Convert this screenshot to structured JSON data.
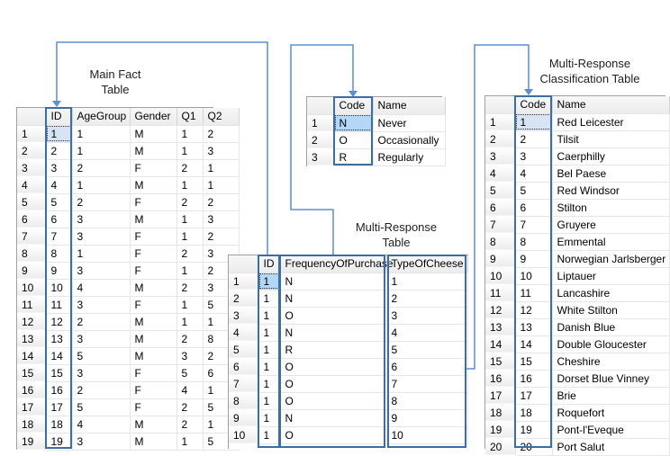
{
  "labels": {
    "main_fact": "Main Fact",
    "main_fact2": "Table",
    "multi_response": "Multi-Response",
    "multi_response2": "Table",
    "classification": "Multi-Response",
    "classification2": "Classification Table"
  },
  "colors": {
    "connector": "#5b8fd0",
    "highlight_border": "#3a6ea5",
    "selected_cell": "#b4d6f7"
  },
  "main_fact_table": {
    "columns": [
      "",
      "ID",
      "AgeGroup",
      "Gender",
      "Q1",
      "Q2"
    ],
    "rows": [
      [
        "1",
        "1",
        "1",
        "M",
        "1",
        "2"
      ],
      [
        "2",
        "2",
        "1",
        "M",
        "1",
        "3"
      ],
      [
        "3",
        "3",
        "2",
        "F",
        "2",
        "1"
      ],
      [
        "4",
        "4",
        "1",
        "M",
        "1",
        "1"
      ],
      [
        "5",
        "5",
        "2",
        "F",
        "2",
        "2"
      ],
      [
        "6",
        "6",
        "3",
        "M",
        "1",
        "3"
      ],
      [
        "7",
        "7",
        "3",
        "F",
        "1",
        "2"
      ],
      [
        "8",
        "8",
        "1",
        "F",
        "2",
        "3"
      ],
      [
        "9",
        "9",
        "3",
        "F",
        "1",
        "2"
      ],
      [
        "10",
        "10",
        "4",
        "M",
        "2",
        "3"
      ],
      [
        "11",
        "11",
        "3",
        "F",
        "1",
        "5"
      ],
      [
        "12",
        "12",
        "2",
        "M",
        "1",
        "1"
      ],
      [
        "13",
        "13",
        "3",
        "M",
        "2",
        "8"
      ],
      [
        "14",
        "14",
        "5",
        "M",
        "3",
        "2"
      ],
      [
        "15",
        "15",
        "3",
        "F",
        "5",
        "6"
      ],
      [
        "16",
        "16",
        "2",
        "F",
        "4",
        "1"
      ],
      [
        "17",
        "17",
        "5",
        "F",
        "2",
        "5"
      ],
      [
        "18",
        "18",
        "4",
        "M",
        "2",
        "1"
      ],
      [
        "19",
        "19",
        "3",
        "M",
        "1",
        "5"
      ]
    ]
  },
  "code_table": {
    "columns": [
      "",
      "Code",
      "Name"
    ],
    "rows": [
      [
        "1",
        "N",
        "Never"
      ],
      [
        "2",
        "O",
        "Occasionally"
      ],
      [
        "3",
        "R",
        "Regularly"
      ]
    ]
  },
  "multi_response_table": {
    "columns": [
      "",
      "ID",
      "FrequencyOfPurchase",
      "TypeOfCheese"
    ],
    "rows": [
      [
        "1",
        "1",
        "N",
        "1"
      ],
      [
        "2",
        "1",
        "N",
        "2"
      ],
      [
        "3",
        "1",
        "O",
        "3"
      ],
      [
        "4",
        "1",
        "N",
        "4"
      ],
      [
        "5",
        "1",
        "R",
        "5"
      ],
      [
        "6",
        "1",
        "O",
        "6"
      ],
      [
        "7",
        "1",
        "O",
        "7"
      ],
      [
        "8",
        "1",
        "O",
        "8"
      ],
      [
        "9",
        "1",
        "N",
        "9"
      ],
      [
        "10",
        "1",
        "O",
        "10"
      ]
    ]
  },
  "classification_table": {
    "columns": [
      "",
      "Code",
      "Name"
    ],
    "rows": [
      [
        "1",
        "1",
        "Red Leicester"
      ],
      [
        "2",
        "2",
        "Tilsit"
      ],
      [
        "3",
        "3",
        "Caerphilly"
      ],
      [
        "4",
        "4",
        "Bel Paese"
      ],
      [
        "5",
        "5",
        "Red Windsor"
      ],
      [
        "6",
        "6",
        "Stilton"
      ],
      [
        "7",
        "7",
        "Gruyere"
      ],
      [
        "8",
        "8",
        "Emmental"
      ],
      [
        "9",
        "9",
        "Norwegian Jarlsberger"
      ],
      [
        "10",
        "10",
        "Liptauer"
      ],
      [
        "11",
        "11",
        "Lancashire"
      ],
      [
        "12",
        "12",
        "White Stilton"
      ],
      [
        "13",
        "13",
        "Danish Blue"
      ],
      [
        "14",
        "14",
        "Double Gloucester"
      ],
      [
        "15",
        "15",
        "Cheshire"
      ],
      [
        "16",
        "16",
        "Dorset Blue Vinney"
      ],
      [
        "17",
        "17",
        "Brie"
      ],
      [
        "18",
        "18",
        "Roquefort"
      ],
      [
        "19",
        "19",
        "Pont-l'Eveque"
      ],
      [
        "20",
        "20",
        "Port Salut"
      ]
    ]
  }
}
